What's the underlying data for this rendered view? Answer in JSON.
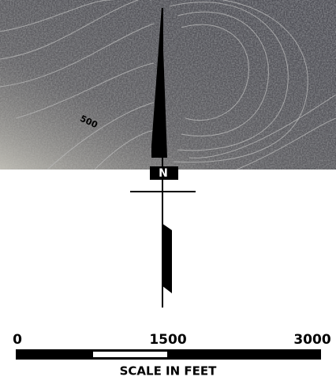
{
  "map": {
    "contour_label": "500",
    "north_label": "N",
    "scale_bar": {
      "labels": [
        "0",
        "1500",
        "3000"
      ],
      "caption": "SCALE IN FEET"
    }
  }
}
